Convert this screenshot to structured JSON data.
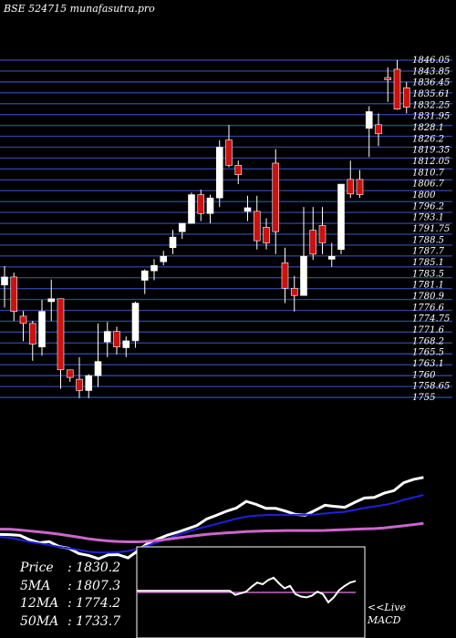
{
  "header": {
    "title": "BSE 524715 munafasutra.pro"
  },
  "stats": [
    {
      "label": "Price",
      "sep": ":",
      "value": "1830.2"
    },
    {
      "label": "5MA",
      "sep": ":",
      "value": "1807.3"
    },
    {
      "label": "12MA",
      "sep": ":",
      "value": "1774.2"
    },
    {
      "label": "50MA",
      "sep": ":",
      "value": "1733.7"
    }
  ],
  "footer": {
    "live_label": "<<Live",
    "macd_label": "MACD"
  },
  "colors": {
    "background": "#000000",
    "gridline": "#2e3f99",
    "up_candle": "#ffffff",
    "down_candle": "#cc1111",
    "ma_fast": "#ffffff",
    "ma_mid": "#2020dd",
    "ma_slow": "#cc66cc",
    "macd_line": "#ffffff",
    "macd_signal": "#cc66cc"
  },
  "chart_data": [
    {
      "type": "candlestick",
      "title": "BSE 524715 munafasutra.pro",
      "ylim": [
        1755,
        1848
      ],
      "grid": true,
      "axis_tick_labels": [
        "1846.05",
        "1843.85",
        "1836.45",
        "1835.61",
        "1832.25",
        "1831.95",
        "1828.1",
        "1826.2",
        "1819.35",
        "1812.05",
        "1810.7",
        "1806.7",
        "1800",
        "1796.2",
        "1793.1",
        "1791.75",
        "1788.5",
        "1787.7",
        "1785.1",
        "1783.5",
        "1781.1",
        "1780.9",
        "1776.6",
        "1774.75",
        "1771.6",
        "1768.2",
        "1765.5",
        "1763.1",
        "1760",
        "1758.65",
        "1755"
      ],
      "candles": [
        {
          "open": 1786.0,
          "high": 1791.2,
          "low": 1779.8,
          "close": 1788.2
        },
        {
          "open": 1788.2,
          "high": 1789.4,
          "low": 1776.1,
          "close": 1778.7
        },
        {
          "open": 1777.4,
          "high": 1778.8,
          "low": 1770.5,
          "close": 1775.4
        },
        {
          "open": 1775.4,
          "high": 1776.1,
          "low": 1765.1,
          "close": 1769.7
        },
        {
          "open": 1768.9,
          "high": 1781.9,
          "low": 1766.5,
          "close": 1778.7
        },
        {
          "open": 1781.4,
          "high": 1787.5,
          "low": 1776.1,
          "close": 1782.2
        },
        {
          "open": 1782.2,
          "high": 1782.2,
          "low": 1757.4,
          "close": 1762.6
        },
        {
          "open": 1762.6,
          "high": 1762.6,
          "low": 1759.3,
          "close": 1760.5
        },
        {
          "open": 1760.0,
          "high": 1766.1,
          "low": 1754.8,
          "close": 1756.9
        },
        {
          "open": 1756.9,
          "high": 1761.4,
          "low": 1754.8,
          "close": 1761.0
        },
        {
          "open": 1761.0,
          "high": 1775.4,
          "low": 1757.9,
          "close": 1764.9
        },
        {
          "open": 1770.3,
          "high": 1775.8,
          "low": 1766.1,
          "close": 1773.2
        },
        {
          "open": 1773.2,
          "high": 1774.5,
          "low": 1766.8,
          "close": 1768.9
        },
        {
          "open": 1768.7,
          "high": 1771.8,
          "low": 1766.1,
          "close": 1770.6
        },
        {
          "open": 1770.6,
          "high": 1781.4,
          "low": 1768.7,
          "close": 1781.0
        },
        {
          "open": 1787.3,
          "high": 1790.3,
          "low": 1783.5,
          "close": 1789.9
        },
        {
          "open": 1789.9,
          "high": 1793.1,
          "low": 1787.3,
          "close": 1791.4
        },
        {
          "open": 1792.4,
          "high": 1795.4,
          "low": 1791.4,
          "close": 1793.9
        },
        {
          "open": 1796.3,
          "high": 1801.2,
          "low": 1794.5,
          "close": 1799.2
        },
        {
          "open": 1800.7,
          "high": 1803.0,
          "low": 1798.7,
          "close": 1803.0
        },
        {
          "open": 1803.0,
          "high": 1811.5,
          "low": 1802.9,
          "close": 1810.9
        },
        {
          "open": 1810.9,
          "high": 1812.3,
          "low": 1803.6,
          "close": 1805.7
        },
        {
          "open": 1805.7,
          "high": 1810.9,
          "low": 1803.0,
          "close": 1810.0
        },
        {
          "open": 1810.0,
          "high": 1825.9,
          "low": 1807.5,
          "close": 1824.0
        },
        {
          "open": 1826.0,
          "high": 1830.1,
          "low": 1818.5,
          "close": 1819.0
        },
        {
          "open": 1819.0,
          "high": 1820.3,
          "low": 1813.8,
          "close": 1816.4
        },
        {
          "open": 1806.3,
          "high": 1810.6,
          "low": 1803.6,
          "close": 1807.3
        },
        {
          "open": 1806.3,
          "high": 1810.6,
          "low": 1795.8,
          "close": 1798.2
        },
        {
          "open": 1801.9,
          "high": 1804.4,
          "low": 1795.8,
          "close": 1797.6
        },
        {
          "open": 1819.6,
          "high": 1823.5,
          "low": 1794.5,
          "close": 1800.7
        },
        {
          "open": 1792.1,
          "high": 1796.3,
          "low": 1781.0,
          "close": 1785.1
        },
        {
          "open": 1785.1,
          "high": 1788.5,
          "low": 1778.7,
          "close": 1783.1
        },
        {
          "open": 1783.1,
          "high": 1807.5,
          "low": 1783.1,
          "close": 1793.9
        },
        {
          "open": 1801.1,
          "high": 1807.5,
          "low": 1792.9,
          "close": 1794.5
        },
        {
          "open": 1802.4,
          "high": 1807.5,
          "low": 1794.5,
          "close": 1797.6
        },
        {
          "open": 1793.1,
          "high": 1797.6,
          "low": 1791.0,
          "close": 1793.9
        },
        {
          "open": 1795.8,
          "high": 1813.8,
          "low": 1794.5,
          "close": 1813.8
        },
        {
          "open": 1815.1,
          "high": 1820.3,
          "low": 1810.0,
          "close": 1811.1
        },
        {
          "open": 1815.1,
          "high": 1817.7,
          "low": 1810.0,
          "close": 1810.9
        },
        {
          "open": 1829.2,
          "high": 1835.3,
          "low": 1821.3,
          "close": 1833.8
        },
        {
          "open": 1830.2,
          "high": 1833.3,
          "low": 1824.3,
          "close": 1827.7
        },
        {
          "open": 1843.2,
          "high": 1846.0,
          "low": 1836.5,
          "close": 1842.6
        },
        {
          "open": 1845.5,
          "high": 1848.0,
          "low": 1834.3,
          "close": 1834.5
        },
        {
          "open": 1840.4,
          "high": 1842.0,
          "low": 1833.3,
          "close": 1835.0
        }
      ]
    },
    {
      "type": "line",
      "title": "",
      "series": [
        {
          "values": [
            1750.0,
            1749.8,
            1749.0,
            1744.0,
            1740.5,
            1741.8,
            1736.3,
            1734.2,
            1728.2,
            1726.0,
            1722.2,
            1726.7,
            1726.9,
            1723.3,
            1731.3,
            1740.0,
            1744.7,
            1749.2,
            1752.5,
            1756.3,
            1760.3,
            1767.8,
            1772.0,
            1776.6,
            1780.2,
            1787.8,
            1784.4,
            1779.8,
            1779.8,
            1776.6,
            1772.9,
            1772.0,
            1777.6,
            1783.4,
            1782.0,
            1781.0,
            1786.6,
            1791.7,
            1792.3,
            1797.2,
            1800.1,
            1809.2,
            1813.0,
            1815.2
          ]
        },
        {
          "values": [
            1747.2,
            1746.4,
            1743.9,
            1741.6,
            1739.7,
            1737.8,
            1735.9,
            1734.3,
            1732.3,
            1730.2,
            1729.4,
            1729.3,
            1729.7,
            1731.0,
            1733.8,
            1737.3,
            1741.0,
            1745.2,
            1749.3,
            1752.7,
            1756.4,
            1759.1,
            1762.1,
            1765.0,
            1768.0,
            1770.3,
            1771.5,
            1772.2,
            1772.4,
            1772.4,
            1772.4,
            1772.4,
            1772.9,
            1774.0,
            1775.0,
            1775.8,
            1778.0,
            1780.2,
            1782.0,
            1783.7,
            1786.0,
            1789.6,
            1792.4,
            1795.0
          ]
        },
        {
          "values": [
            1756.0,
            1756.0,
            1755.1,
            1754.0,
            1752.9,
            1751.7,
            1750.3,
            1748.6,
            1746.9,
            1745.0,
            1743.6,
            1742.6,
            1741.9,
            1741.5,
            1741.5,
            1742.2,
            1743.1,
            1744.6,
            1746.0,
            1747.5,
            1748.9,
            1750.1,
            1751.0,
            1751.8,
            1752.5,
            1753.3,
            1753.7,
            1754.1,
            1754.2,
            1754.5,
            1754.5,
            1754.5,
            1754.5,
            1754.6,
            1755.1,
            1755.5,
            1756.0,
            1756.4,
            1756.7,
            1757.5,
            1758.7,
            1759.9,
            1761.3,
            1762.7
          ]
        }
      ]
    },
    {
      "type": "line",
      "title": "MACD",
      "series": [
        {
          "values": [
            0.2,
            0.2,
            0.2,
            0.2,
            0.2,
            0.2,
            0.2,
            0.2,
            0.2,
            0.2,
            0.2,
            0.2,
            0.2,
            0.2,
            0.2,
            0.2,
            0.2,
            0.2,
            -0.3,
            -0.1,
            0.1,
            0.7,
            1.2,
            1.0,
            1.5,
            1.8,
            1.1,
            0.5,
            0.8,
            -0.2,
            -0.5,
            -0.6,
            -0.4,
            0.1,
            -0.2,
            -1.2,
            -0.6,
            0.3,
            0.8,
            1.2,
            1.4
          ]
        },
        {
          "values": [
            0.0,
            0.0,
            0.0,
            0.0,
            0.0,
            0.0,
            0.0,
            0.0,
            0.0,
            0.0,
            0.0,
            0.0,
            0.0,
            0.0,
            0.0,
            0.0,
            0.0,
            0.0,
            0.0,
            0.0,
            0.0,
            0.0,
            0.0,
            0.0,
            0.0,
            0.0,
            0.0,
            0.0,
            0.0,
            0.0,
            0.0,
            0.0,
            0.0,
            0.0,
            0.0,
            0.0,
            0.0,
            0.0,
            0.0,
            0.0,
            0.0
          ]
        }
      ]
    }
  ]
}
